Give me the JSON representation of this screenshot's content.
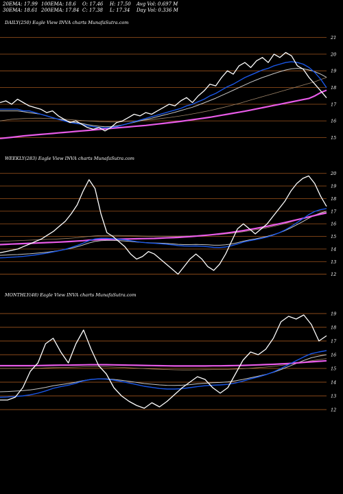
{
  "header": {
    "ema20": "20EMA: 17.99",
    "ema100": "100EMA: 18.6",
    "open": "O: 17.46",
    "high": "H: 17.50",
    "avg_vol": "Avg Vol: 0.697  M",
    "ema30": "30EMA: 18.61",
    "ema200": "200EMA: 17.84",
    "close": "C: 17.38",
    "low": "L: 17.34",
    "day_vol": "Day Vol: 0.336  M"
  },
  "colors": {
    "background": "#000000",
    "price": "#ffffff",
    "ema20": "#1a57e8",
    "ema30": "#c8c8c8",
    "ema100": "#a0866a",
    "ema200": "#e85be8",
    "gridline": "#8a4a1a"
  },
  "chart_data": [
    {
      "type": "line",
      "title": "DAILY(250) Eagle  View  INVA charts MunafaSutra.com",
      "y_ticks": [
        21,
        20,
        19,
        18,
        17,
        16,
        15
      ],
      "ylim": [
        14.2,
        21.6
      ],
      "series": [
        {
          "name": "price",
          "values": [
            17.1,
            17.2,
            17.0,
            17.3,
            17.1,
            16.9,
            16.8,
            16.7,
            16.5,
            16.6,
            16.3,
            16.1,
            15.9,
            16.0,
            15.8,
            15.6,
            15.5,
            15.6,
            15.4,
            15.6,
            15.9,
            16.0,
            16.2,
            16.4,
            16.3,
            16.5,
            16.4,
            16.6,
            16.8,
            17.0,
            16.9,
            17.2,
            17.4,
            17.1,
            17.5,
            17.8,
            18.2,
            18.1,
            18.6,
            19.0,
            18.8,
            19.3,
            19.5,
            19.2,
            19.6,
            19.8,
            19.5,
            20.0,
            19.8,
            20.1,
            19.9,
            19.3,
            19.1,
            18.6,
            18.2,
            17.8,
            17.38
          ]
        },
        {
          "name": "20EMA",
          "values": [
            16.7,
            16.7,
            16.7,
            16.7,
            16.6,
            16.6,
            16.5,
            16.4,
            16.3,
            16.2,
            16.1,
            16.0,
            15.9,
            15.85,
            15.8,
            15.7,
            15.65,
            15.6,
            15.58,
            15.6,
            15.65,
            15.75,
            15.85,
            15.95,
            16.05,
            16.15,
            16.25,
            16.35,
            16.45,
            16.55,
            16.65,
            16.75,
            16.9,
            17.0,
            17.15,
            17.3,
            17.5,
            17.65,
            17.85,
            18.05,
            18.2,
            18.4,
            18.6,
            18.75,
            18.9,
            19.05,
            19.15,
            19.3,
            19.4,
            19.5,
            19.55,
            19.5,
            19.4,
            19.2,
            18.9,
            18.5,
            17.99
          ]
        },
        {
          "name": "30EMA",
          "values": [
            16.6,
            16.6,
            16.6,
            16.6,
            16.55,
            16.5,
            16.45,
            16.4,
            16.3,
            16.2,
            16.1,
            16.05,
            15.95,
            15.9,
            15.85,
            15.78,
            15.72,
            15.68,
            15.65,
            15.66,
            15.7,
            15.76,
            15.84,
            15.92,
            16.0,
            16.08,
            16.16,
            16.25,
            16.34,
            16.43,
            16.52,
            16.62,
            16.72,
            16.82,
            16.95,
            17.08,
            17.22,
            17.36,
            17.52,
            17.68,
            17.84,
            18.0,
            18.16,
            18.32,
            18.46,
            18.6,
            18.72,
            18.84,
            18.95,
            19.05,
            19.12,
            19.15,
            19.12,
            19.05,
            18.95,
            18.8,
            18.61
          ]
        },
        {
          "name": "100EMA",
          "values": [
            16.0,
            16.05,
            16.1,
            16.12,
            16.14,
            16.15,
            16.16,
            16.16,
            16.15,
            16.14,
            16.12,
            16.1,
            16.08,
            16.05,
            16.02,
            16.0,
            15.98,
            15.96,
            15.95,
            15.94,
            15.94,
            15.95,
            15.97,
            15.99,
            16.02,
            16.05,
            16.08,
            16.12,
            16.16,
            16.2,
            16.25,
            16.3,
            16.36,
            16.42,
            16.48,
            16.55,
            16.62,
            16.7,
            16.78,
            16.87,
            16.96,
            17.05,
            17.15,
            17.25,
            17.35,
            17.45,
            17.55,
            17.65,
            17.75,
            17.85,
            17.95,
            18.05,
            18.15,
            18.25,
            18.35,
            18.48,
            18.6
          ]
        },
        {
          "name": "200EMA",
          "values": [
            14.95,
            14.98,
            15.02,
            15.06,
            15.1,
            15.13,
            15.16,
            15.19,
            15.22,
            15.25,
            15.28,
            15.31,
            15.34,
            15.37,
            15.4,
            15.43,
            15.46,
            15.49,
            15.52,
            15.55,
            15.58,
            15.61,
            15.64,
            15.67,
            15.7,
            15.73,
            15.77,
            15.81,
            15.85,
            15.89,
            15.93,
            15.97,
            16.02,
            16.07,
            16.12,
            16.17,
            16.22,
            16.28,
            16.34,
            16.4,
            16.46,
            16.52,
            16.58,
            16.65,
            16.72,
            16.79,
            16.86,
            16.93,
            17.0,
            17.07,
            17.14,
            17.21,
            17.28,
            17.35,
            17.5,
            17.7,
            17.84
          ]
        }
      ]
    },
    {
      "type": "line",
      "title": "WEEKLY(283) Eagle  View  INVA charts MunafaSutra.com",
      "y_ticks": [
        20,
        19,
        18,
        17,
        16,
        15,
        14,
        13,
        12
      ],
      "ylim": [
        11.0,
        20.8
      ],
      "series": [
        {
          "name": "price",
          "values": [
            13.7,
            13.8,
            13.9,
            14.0,
            14.2,
            14.4,
            14.6,
            14.8,
            15.1,
            15.4,
            15.8,
            16.2,
            16.8,
            17.5,
            18.6,
            19.5,
            18.8,
            16.8,
            15.3,
            15.0,
            14.6,
            14.2,
            13.6,
            13.2,
            13.4,
            13.8,
            13.6,
            13.2,
            12.8,
            12.4,
            12.0,
            12.6,
            13.2,
            13.6,
            13.2,
            12.6,
            12.3,
            12.8,
            13.6,
            14.6,
            15.6,
            16.0,
            15.6,
            15.2,
            15.6,
            16.0,
            16.6,
            17.2,
            17.8,
            18.6,
            19.2,
            19.6,
            19.8,
            19.2,
            18.2,
            17.38
          ]
        },
        {
          "name": "20EMA",
          "values": [
            13.3,
            13.32,
            13.35,
            13.38,
            13.42,
            13.47,
            13.53,
            13.6,
            13.68,
            13.77,
            13.87,
            13.98,
            14.12,
            14.28,
            14.46,
            14.66,
            14.8,
            14.85,
            14.85,
            14.82,
            14.78,
            14.73,
            14.66,
            14.58,
            14.52,
            14.48,
            14.45,
            14.42,
            14.38,
            14.33,
            14.27,
            14.24,
            14.23,
            14.24,
            14.22,
            14.18,
            14.13,
            14.12,
            14.16,
            14.26,
            14.4,
            14.55,
            14.66,
            14.74,
            14.84,
            14.95,
            15.1,
            15.28,
            15.5,
            15.78,
            16.08,
            16.4,
            16.72,
            16.98,
            17.12,
            17.2
          ]
        },
        {
          "name": "30EMA",
          "values": [
            13.5,
            13.52,
            13.54,
            13.56,
            13.59,
            13.62,
            13.66,
            13.7,
            13.75,
            13.81,
            13.88,
            13.96,
            14.06,
            14.18,
            14.32,
            14.48,
            14.6,
            14.66,
            14.68,
            14.68,
            14.66,
            14.63,
            14.6,
            14.55,
            14.52,
            14.5,
            14.48,
            14.46,
            14.44,
            14.41,
            14.37,
            14.35,
            14.35,
            14.36,
            14.35,
            14.33,
            14.3,
            14.3,
            14.33,
            14.4,
            14.5,
            14.62,
            14.72,
            14.8,
            14.9,
            15.0,
            15.13,
            15.28,
            15.46,
            15.68,
            15.92,
            16.18,
            16.44,
            16.68,
            16.86,
            17.0
          ]
        },
        {
          "name": "100EMA",
          "values": [
            14.6,
            14.62,
            14.64,
            14.66,
            14.68,
            14.7,
            14.72,
            14.74,
            14.76,
            14.78,
            14.8,
            14.83,
            14.86,
            14.9,
            14.95,
            15.0,
            15.04,
            15.06,
            15.07,
            15.07,
            15.07,
            15.06,
            15.05,
            15.04,
            15.03,
            15.02,
            15.02,
            15.02,
            15.02,
            15.02,
            15.02,
            15.03,
            15.04,
            15.06,
            15.08,
            15.1,
            15.12,
            15.15,
            15.19,
            15.24,
            15.3,
            15.37,
            15.44,
            15.52,
            15.6,
            15.69,
            15.79,
            15.9,
            16.02,
            16.15,
            16.29,
            16.43,
            16.57,
            16.7,
            16.82,
            16.92
          ]
        },
        {
          "name": "200EMA",
          "values": [
            14.35,
            14.37,
            14.39,
            14.41,
            14.43,
            14.45,
            14.47,
            14.49,
            14.51,
            14.53,
            14.55,
            14.57,
            14.6,
            14.63,
            14.66,
            14.7,
            14.73,
            14.75,
            14.76,
            14.77,
            14.78,
            14.79,
            14.8,
            14.81,
            14.82,
            14.83,
            14.84,
            14.86,
            14.88,
            14.9,
            14.92,
            14.95,
            14.98,
            15.02,
            15.06,
            15.1,
            15.15,
            15.2,
            15.26,
            15.32,
            15.39,
            15.46,
            15.54,
            15.62,
            15.71,
            15.8,
            15.9,
            16.0,
            16.1,
            16.21,
            16.32,
            16.43,
            16.54,
            16.65,
            16.76,
            16.86
          ]
        }
      ]
    },
    {
      "type": "line",
      "title": "MONTHLY(48) Eagle  View  INVA charts MunafaSutra.com",
      "y_ticks": [
        19,
        18,
        17,
        16,
        15,
        14,
        13,
        12
      ],
      "ylim": [
        11.0,
        20.0
      ],
      "series": [
        {
          "name": "price",
          "values": [
            12.7,
            12.7,
            12.9,
            13.6,
            14.8,
            15.4,
            16.8,
            17.2,
            16.2,
            15.4,
            16.8,
            17.8,
            16.4,
            15.2,
            14.6,
            13.6,
            13.0,
            12.6,
            12.3,
            12.1,
            12.5,
            12.2,
            12.6,
            13.1,
            13.6,
            14.0,
            14.4,
            14.2,
            13.6,
            13.2,
            13.6,
            14.6,
            15.6,
            16.2,
            16.0,
            16.4,
            17.2,
            18.4,
            18.8,
            18.6,
            18.9,
            18.2,
            17.0,
            17.38
          ]
        },
        {
          "name": "20EMA",
          "values": [
            12.9,
            12.92,
            12.96,
            13.0,
            13.08,
            13.2,
            13.36,
            13.55,
            13.68,
            13.78,
            13.92,
            14.1,
            14.2,
            14.24,
            14.22,
            14.15,
            14.05,
            13.94,
            13.82,
            13.7,
            13.62,
            13.54,
            13.5,
            13.5,
            13.53,
            13.6,
            13.68,
            13.74,
            13.78,
            13.8,
            13.84,
            13.94,
            14.08,
            14.24,
            14.38,
            14.54,
            14.74,
            15.0,
            15.28,
            15.56,
            15.84,
            16.08,
            16.2,
            16.3
          ]
        },
        {
          "name": "30EMA",
          "values": [
            13.3,
            13.32,
            13.35,
            13.38,
            13.44,
            13.52,
            13.62,
            13.74,
            13.82,
            13.9,
            14.0,
            14.12,
            14.2,
            14.24,
            14.24,
            14.2,
            14.14,
            14.06,
            13.98,
            13.9,
            13.85,
            13.8,
            13.77,
            13.76,
            13.78,
            13.82,
            13.88,
            13.92,
            13.96,
            13.98,
            14.02,
            14.1,
            14.2,
            14.32,
            14.44,
            14.56,
            14.72,
            14.92,
            15.14,
            15.36,
            15.58,
            15.78,
            15.9,
            16.0
          ]
        },
        {
          "name": "100EMA",
          "values": [
            15.0,
            15.0,
            15.0,
            15.0,
            15.01,
            15.02,
            15.04,
            15.06,
            15.07,
            15.08,
            15.1,
            15.12,
            15.13,
            15.13,
            15.12,
            15.1,
            15.08,
            15.05,
            15.02,
            14.99,
            14.96,
            14.94,
            14.92,
            14.9,
            14.89,
            14.89,
            14.9,
            14.91,
            14.92,
            14.92,
            14.93,
            14.95,
            14.98,
            15.02,
            15.06,
            15.1,
            15.15,
            15.22,
            15.3,
            15.38,
            15.47,
            15.56,
            15.64,
            15.72
          ]
        },
        {
          "name": "200EMA",
          "values": [
            15.2,
            15.2,
            15.2,
            15.2,
            15.2,
            15.21,
            15.22,
            15.23,
            15.24,
            15.24,
            15.25,
            15.26,
            15.27,
            15.27,
            15.27,
            15.26,
            15.25,
            15.24,
            15.23,
            15.22,
            15.21,
            15.2,
            15.19,
            15.18,
            15.18,
            15.18,
            15.18,
            15.18,
            15.19,
            15.19,
            15.2,
            15.21,
            15.22,
            15.24,
            15.26,
            15.28,
            15.3,
            15.33,
            15.36,
            15.4,
            15.44,
            15.48,
            15.52,
            15.56
          ]
        }
      ]
    }
  ]
}
